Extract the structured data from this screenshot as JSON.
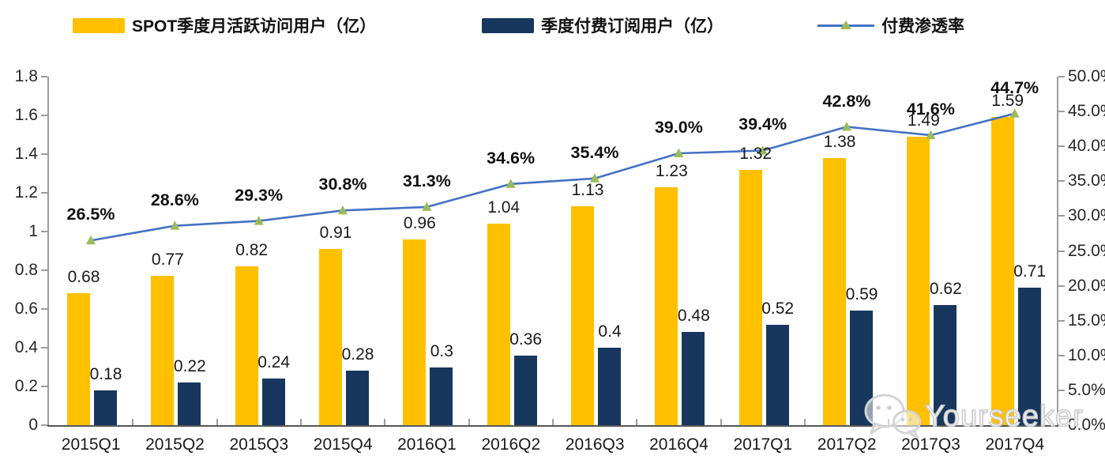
{
  "legend": {
    "items": [
      {
        "label": "SPOT季度月活跃访问用户（亿）",
        "swatch": "yellow-bar-swatch"
      },
      {
        "label": "季度付费订阅用户（亿）",
        "swatch": "navy-bar-swatch"
      },
      {
        "label": "付费渗透率",
        "swatch": "line-marker-swatch"
      }
    ]
  },
  "watermark": {
    "text": "Yourseeker",
    "icon": "wechat-icon"
  },
  "colors": {
    "mau_bar": "#FFC000",
    "subs_bar": "#17375E",
    "penetration_line": "#4472C4",
    "marker": "#9BBB59",
    "axis": "#9C9C9C",
    "x_axis": "#565656",
    "label_text": "#1A1A1A",
    "watermark": "#CCCCCC"
  },
  "chart_data": {
    "type": "bar",
    "subtype": "combo-bar-line",
    "title": "",
    "grid": false,
    "legend_position": "top",
    "categories": [
      "2015Q1",
      "2015Q2",
      "2015Q3",
      "2015Q4",
      "2016Q1",
      "2016Q2",
      "2016Q3",
      "2016Q4",
      "2017Q1",
      "2017Q2",
      "2017Q3",
      "2017Q4"
    ],
    "series": [
      {
        "name": "SPOT季度月活跃访问用户（亿）",
        "type": "bar",
        "axis": "left",
        "color": "#FFC000",
        "values": [
          0.68,
          0.77,
          0.82,
          0.91,
          0.96,
          1.04,
          1.13,
          1.23,
          1.32,
          1.38,
          1.49,
          1.59
        ],
        "labels": [
          "0.68",
          "0.77",
          "0.82",
          "0.91",
          "0.96",
          "1.04",
          "1.13",
          "1.23",
          "1.32",
          "1.38",
          "1.49",
          "1.59"
        ]
      },
      {
        "name": "季度付费订阅用户（亿）",
        "type": "bar",
        "axis": "left",
        "color": "#17375E",
        "values": [
          0.18,
          0.22,
          0.24,
          0.28,
          0.3,
          0.36,
          0.4,
          0.48,
          0.52,
          0.59,
          0.62,
          0.71
        ],
        "labels": [
          "0.18",
          "0.22",
          "0.24",
          "0.28",
          "0.3",
          "0.36",
          "0.4",
          "0.48",
          "0.52",
          "0.59",
          "0.62",
          "0.71"
        ]
      },
      {
        "name": "付费渗透率",
        "type": "line",
        "axis": "right",
        "color": "#4472C4",
        "marker": "triangle",
        "marker_color": "#9BBB59",
        "values": [
          26.5,
          28.6,
          29.3,
          30.8,
          31.3,
          34.6,
          35.4,
          39.0,
          39.4,
          42.8,
          41.6,
          44.7
        ],
        "labels": [
          "26.5%",
          "28.6%",
          "29.3%",
          "30.8%",
          "31.3%",
          "34.6%",
          "35.4%",
          "39.0%",
          "39.4%",
          "42.8%",
          "41.6%",
          "44.7%"
        ]
      }
    ],
    "left_axis": {
      "min": 0,
      "max": 1.8,
      "step": 0.2,
      "ticks": [
        "0",
        "0.2",
        "0.4",
        "0.6",
        "0.8",
        "1",
        "1.2",
        "1.4",
        "1.6",
        "1.8"
      ]
    },
    "right_axis": {
      "min": 0,
      "max": 50,
      "step": 5,
      "ticks": [
        "0.0%",
        "5.0%",
        "10.0%",
        "15.0%",
        "20.0%",
        "25.0%",
        "30.0%",
        "35.0%",
        "40.0%",
        "45.0%",
        "50.0%"
      ]
    }
  }
}
